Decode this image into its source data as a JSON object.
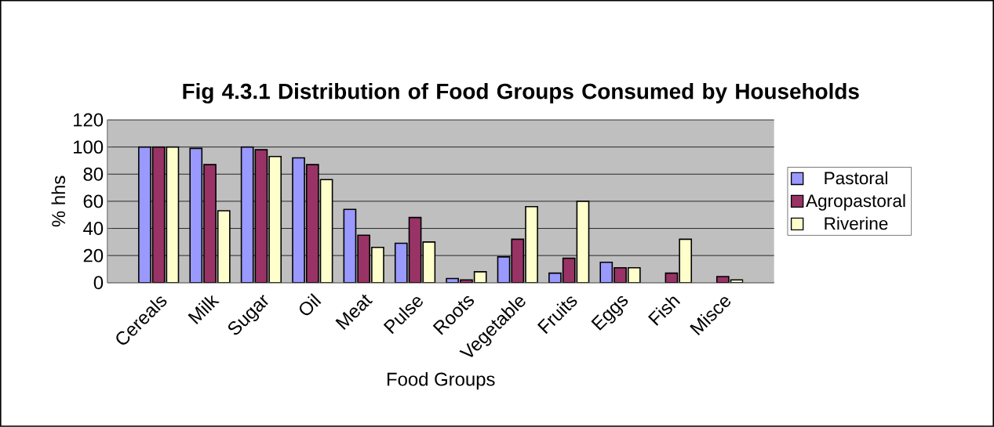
{
  "chart_data": {
    "type": "bar",
    "title": "Fig 4.3.1 Distribution of Food Groups Consumed by Households",
    "xlabel": "Food Groups",
    "ylabel": "% hhs",
    "categories": [
      "Cereals",
      "Milk",
      "Sugar",
      "Oil",
      "Meat",
      "Pulse",
      "Roots",
      "Vegetable",
      "Fruits",
      "Eggs",
      "Fish",
      "Misce"
    ],
    "series": [
      {
        "name": "Pastoral",
        "color": "#9999ff",
        "values": [
          100,
          99,
          100,
          92,
          54,
          29,
          3,
          19,
          7,
          15,
          null,
          null
        ]
      },
      {
        "name": "Agropastoral",
        "color": "#993366",
        "values": [
          100,
          87,
          98,
          87,
          35,
          48,
          2,
          32,
          18,
          11,
          7,
          4.5
        ]
      },
      {
        "name": "Riverine",
        "color": "#ffffcc",
        "values": [
          100,
          53,
          93,
          76,
          26,
          30,
          8,
          56,
          60,
          11,
          32,
          2
        ]
      }
    ],
    "ylim": [
      0,
      120
    ],
    "yticks": [
      0,
      20,
      40,
      60,
      80,
      100,
      120
    ],
    "grid": "y",
    "legend": "right"
  }
}
